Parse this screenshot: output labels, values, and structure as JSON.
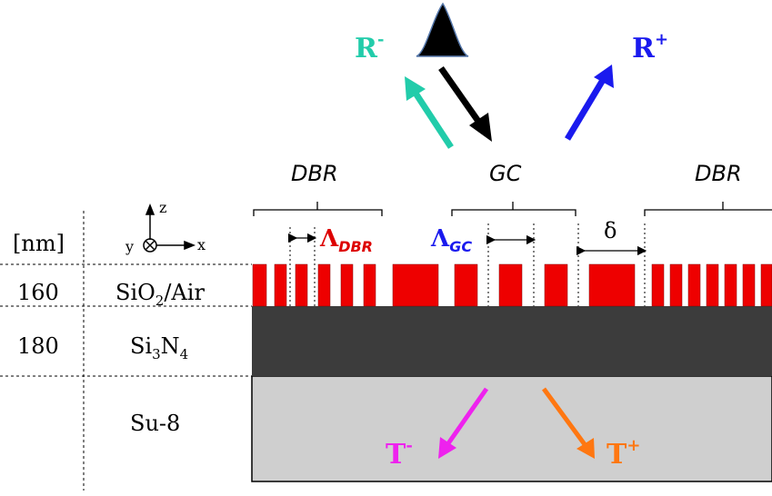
{
  "labels": {
    "unit": "[nm]",
    "thick_sio2": "160",
    "thick_sin": "180",
    "layer_sio2": "SiO",
    "layer_sio2_sub": "2",
    "layer_sio2_tail": "/Air",
    "layer_si": "Si",
    "layer_si_sub": "3",
    "layer_n": "N",
    "layer_n_sub": "4",
    "layer_su8": "Su-8",
    "axis_z": "z",
    "axis_y": "y",
    "axis_x": "x",
    "dbr_left": "DBR",
    "gc": "GC",
    "dbr_right": "DBR",
    "lambda_dbr": "Λ",
    "lambda_dbr_sub": "DBR",
    "lambda_gc": "Λ",
    "lambda_gc_sub": "GC",
    "delta": "δ",
    "r_minus": "R",
    "r_minus_sup": "-",
    "r_plus": "R",
    "r_plus_sup": "+",
    "t_minus": "T",
    "t_minus_sup": "-",
    "t_plus": "T",
    "t_plus_sup": "+"
  },
  "colors": {
    "grating": "#ee0000",
    "sin_layer": "#3c3c3c",
    "su8_layer": "#cfcfcf",
    "r_minus": "#22ccaa",
    "r_plus": "#1a1aee",
    "t_minus": "#ee22ee",
    "t_plus": "#ff7711",
    "lambda_dbr": "#dd0000",
    "lambda_gc": "#1a1aee",
    "incident": "#000000"
  }
}
